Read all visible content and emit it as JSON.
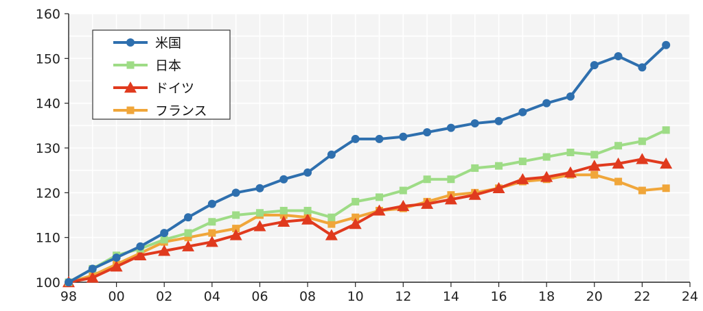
{
  "chart_data": {
    "type": "line",
    "x_ticks": [
      "98",
      "00",
      "02",
      "04",
      "06",
      "08",
      "10",
      "12",
      "14",
      "16",
      "18",
      "20",
      "22",
      "24"
    ],
    "y_ticks": [
      "100",
      "110",
      "120",
      "130",
      "140",
      "150",
      "160"
    ],
    "xlim": [
      1998,
      2024
    ],
    "ylim": [
      100,
      160
    ],
    "grid": true,
    "legend_position": "top-left",
    "x": [
      1998,
      1999,
      2000,
      2001,
      2002,
      2003,
      2004,
      2005,
      2006,
      2007,
      2008,
      2009,
      2010,
      2011,
      2012,
      2013,
      2014,
      2015,
      2016,
      2017,
      2018,
      2019,
      2020,
      2021,
      2022,
      2023
    ],
    "series": [
      {
        "name": "米国",
        "color": "#2e6fae",
        "marker": "circle",
        "values": [
          100,
          103,
          105.5,
          108,
          111,
          114.5,
          117.5,
          120,
          121,
          123,
          124.5,
          128.5,
          132,
          132,
          132.5,
          133.5,
          134.5,
          135.5,
          136,
          138,
          140,
          141.5,
          148.5,
          150.5,
          148,
          153
        ]
      },
      {
        "name": "日本",
        "color": "#9edc86",
        "marker": "square",
        "values": [
          100,
          103,
          106,
          107.5,
          109.5,
          111,
          113.5,
          115,
          115.5,
          116,
          116,
          114.5,
          118,
          119,
          120.5,
          123,
          123,
          125.5,
          126,
          127,
          128,
          129,
          128.5,
          130.5,
          131.5,
          134
        ]
      },
      {
        "name": "ドイツ",
        "color": "#e03a1e",
        "marker": "triangle",
        "values": [
          100,
          101,
          103.5,
          106,
          107,
          108,
          109,
          110.5,
          112.5,
          113.5,
          114,
          110.5,
          113,
          116,
          117,
          117.5,
          118.5,
          119.5,
          121,
          123,
          123.5,
          124.5,
          126,
          126.5,
          127.5,
          126.5
        ]
      },
      {
        "name": "フランス",
        "color": "#f0a63a",
        "marker": "square",
        "values": [
          100,
          101.5,
          104,
          106.5,
          109,
          110,
          111,
          112,
          115,
          115,
          114.5,
          113,
          114.5,
          116,
          116.5,
          118,
          119.5,
          120,
          121,
          122.5,
          123,
          124,
          124,
          122.5,
          120.5,
          121
        ]
      }
    ]
  }
}
